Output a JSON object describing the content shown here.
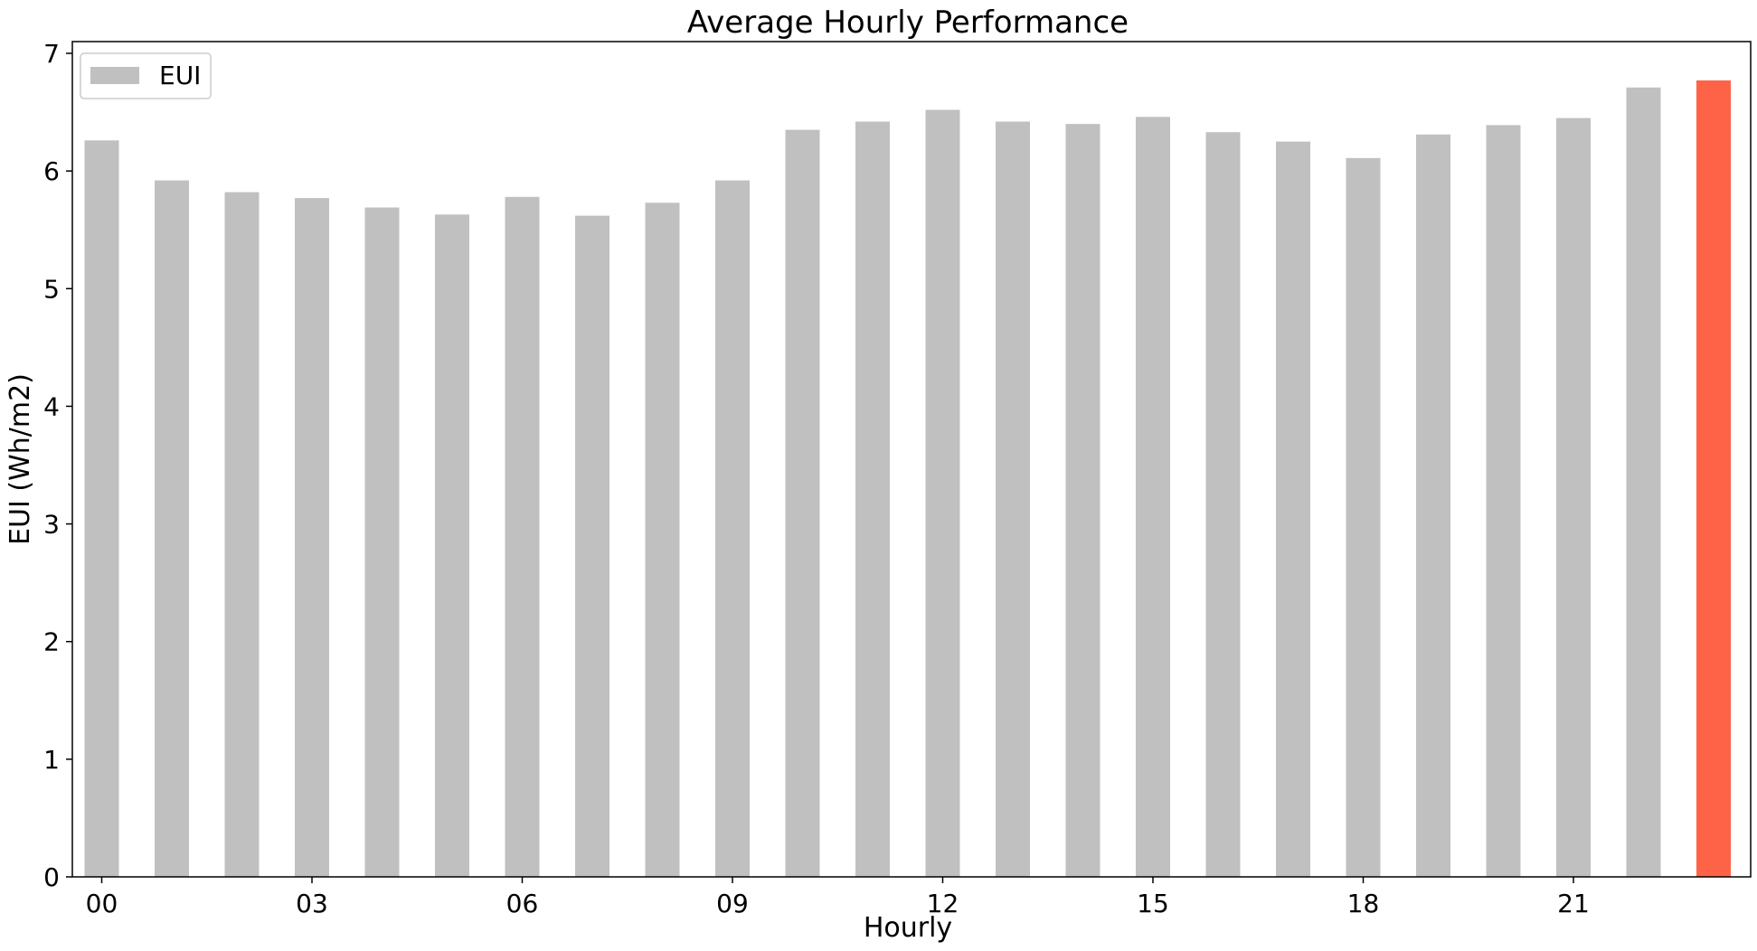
{
  "chart_data": {
    "type": "bar",
    "title": "Average Hourly Performance",
    "xlabel": "Hourly",
    "ylabel": "EUI (Wh/m2)",
    "ylim": [
      0,
      7.1
    ],
    "yticks": [
      "0",
      "1",
      "2",
      "3",
      "4",
      "5",
      "6",
      "7"
    ],
    "categories": [
      "00",
      "01",
      "02",
      "03",
      "04",
      "05",
      "06",
      "07",
      "08",
      "09",
      "10",
      "11",
      "12",
      "13",
      "14",
      "15",
      "16",
      "17",
      "18",
      "19",
      "20",
      "21",
      "22",
      "23"
    ],
    "xtick_labels": [
      "00",
      "03",
      "06",
      "09",
      "12",
      "15",
      "18",
      "21"
    ],
    "series": [
      {
        "name": "EUI",
        "values": [
          6.26,
          5.92,
          5.82,
          5.77,
          5.69,
          5.63,
          5.78,
          5.62,
          5.73,
          5.92,
          6.35,
          6.42,
          6.52,
          6.42,
          6.4,
          6.46,
          6.33,
          6.25,
          6.11,
          6.31,
          6.39,
          6.45,
          6.71,
          6.77
        ]
      }
    ],
    "highlight_index": 23,
    "colors": {
      "bar": "#c0c0c0",
      "highlight": "#ff6347"
    },
    "grid": false,
    "legend_placement": "top-left"
  }
}
